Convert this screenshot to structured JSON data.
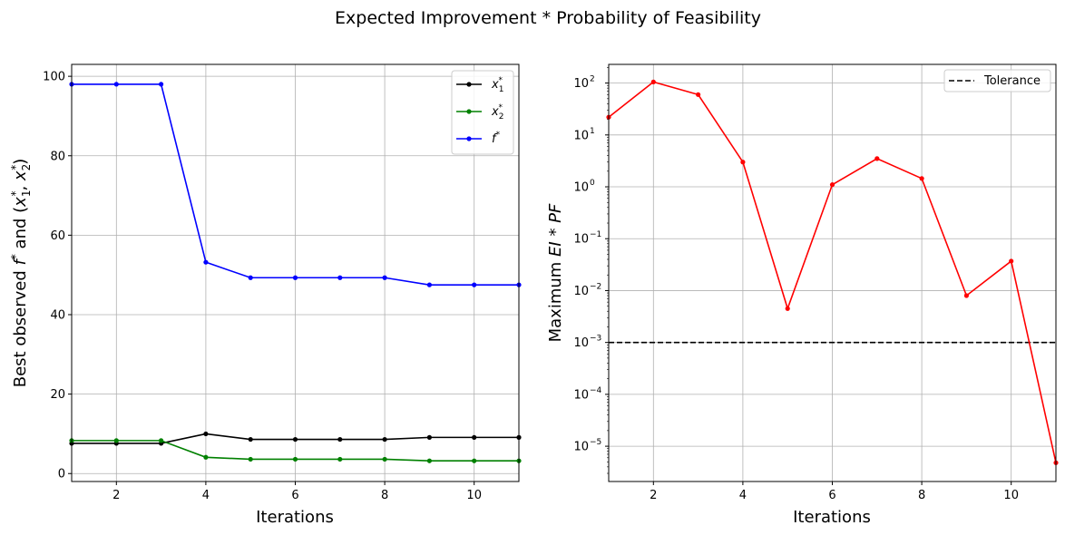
{
  "figure": {
    "title": "Expected Improvement * Probability of Feasibility"
  },
  "chart_data": [
    {
      "type": "line",
      "xlabel": "Iterations",
      "ylabel_parts": [
        "Best observed ",
        "f",
        "*",
        " and (",
        "x",
        "1",
        "*",
        ", ",
        "x",
        "2",
        "*",
        ")"
      ],
      "xlim": [
        1,
        11
      ],
      "ylim": [
        -2,
        103
      ],
      "xticks": [
        2,
        4,
        6,
        8,
        10
      ],
      "yticks": [
        0,
        20,
        40,
        60,
        80,
        100
      ],
      "grid": true,
      "legend_position": "top-right",
      "x": [
        1,
        2,
        3,
        4,
        5,
        6,
        7,
        8,
        9,
        10,
        11
      ],
      "series": [
        {
          "key": "x1",
          "legend_parts": [
            "x",
            "1",
            "*"
          ],
          "color": "#000000",
          "values": [
            7.6,
            7.6,
            7.6,
            10.0,
            8.6,
            8.6,
            8.6,
            8.6,
            9.1,
            9.1,
            9.1
          ]
        },
        {
          "key": "x2",
          "legend_parts": [
            "x",
            "2",
            "*"
          ],
          "color": "#008000",
          "values": [
            8.3,
            8.3,
            8.3,
            4.1,
            3.6,
            3.6,
            3.6,
            3.6,
            3.2,
            3.2,
            3.2
          ]
        },
        {
          "key": "f",
          "legend_parts": [
            "f",
            "",
            "*"
          ],
          "color": "#0000ff",
          "values": [
            98.0,
            98.0,
            98.0,
            53.2,
            49.3,
            49.3,
            49.3,
            49.3,
            47.5,
            47.5,
            47.5
          ]
        }
      ]
    },
    {
      "type": "line",
      "yscale": "log",
      "xlabel": "Iterations",
      "ylabel_parts": [
        "Maximum ",
        "EI",
        " * ",
        "PF"
      ],
      "xlim": [
        1,
        11
      ],
      "ylim_log10": [
        -5.68,
        2.36
      ],
      "xticks": [
        2,
        4,
        6,
        8,
        10
      ],
      "yticks_log10": [
        -5,
        -4,
        -3,
        -2,
        -1,
        0,
        1,
        2
      ],
      "ytick_base": "10",
      "grid": true,
      "legend_position": "top-right",
      "x": [
        1,
        2,
        3,
        4,
        5,
        6,
        7,
        8,
        9,
        10,
        11
      ],
      "series": [
        {
          "key": "eipf",
          "color": "#ff0000",
          "values": [
            22,
            105,
            60,
            3.0,
            0.0045,
            1.1,
            3.5,
            1.45,
            0.008,
            0.037,
            4.8e-06
          ]
        }
      ],
      "reference_line": {
        "label": "Tolerance",
        "value": 0.001,
        "color": "#000000",
        "style": "dashed"
      }
    }
  ]
}
